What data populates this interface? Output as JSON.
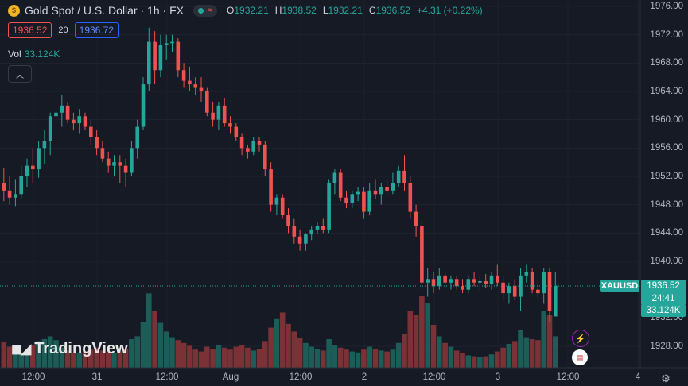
{
  "header": {
    "symbol_icon": "gold-coin-icon",
    "title": "Gold Spot / U.S. Dollar · 1h · FX",
    "status_icon": "market-open-icon",
    "ohlc": {
      "o_label": "O",
      "o": "1932.21",
      "h_label": "H",
      "h": "1938.52",
      "l_label": "L",
      "l": "1932.21",
      "c_label": "C",
      "c": "1936.52",
      "change": "+4.31 (+0.22%)"
    },
    "bid": "1936.52",
    "spread": "20",
    "ask": "1936.72",
    "vol_label": "Vol",
    "vol_value": "33.124K",
    "collapse_icon": "chevron-up-icon"
  },
  "price_axis": {
    "labels": [
      "1976.00",
      "1972.00",
      "1968.00",
      "1964.00",
      "1960.00",
      "1956.00",
      "1952.00",
      "1948.00",
      "1944.00",
      "1940.00",
      "1932.00",
      "1928.00"
    ]
  },
  "time_axis": {
    "labels": [
      "12:00",
      "31",
      "12:00",
      "Aug",
      "12:00",
      "2",
      "12:00",
      "3",
      "12:00",
      "4"
    ]
  },
  "last_price": {
    "symbol": "XAUUSD",
    "price": "1936.52",
    "countdown": "24:41",
    "volume": "33.124K"
  },
  "branding": {
    "logo_icon": "tradingview-logo-icon",
    "text": "TradingView"
  },
  "event_icons": [
    "lightning-icon",
    "us-flag-icon"
  ],
  "settings_icon": "gear-icon",
  "colors": {
    "up": "#26a69a",
    "down": "#ef5350",
    "vol_up": "#1c5d57",
    "vol_down": "#7a3236",
    "background": "#161a25"
  },
  "chart_data": {
    "type": "candlestick",
    "symbol": "XAUUSD",
    "timeframe": "1h",
    "ylim": [
      1926,
      1977
    ],
    "candles": [
      {
        "o": 1951.0,
        "h": 1953.2,
        "l": 1948.5,
        "c": 1950.0,
        "v": 0.27
      },
      {
        "o": 1950.0,
        "h": 1952.0,
        "l": 1948.0,
        "c": 1949.0,
        "v": 0.22
      },
      {
        "o": 1949.0,
        "h": 1951.5,
        "l": 1947.8,
        "c": 1949.5,
        "v": 0.19
      },
      {
        "o": 1949.5,
        "h": 1953.5,
        "l": 1948.8,
        "c": 1952.0,
        "v": 0.16
      },
      {
        "o": 1952.0,
        "h": 1954.5,
        "l": 1950.5,
        "c": 1953.5,
        "v": 0.14
      },
      {
        "o": 1953.5,
        "h": 1956.0,
        "l": 1951.0,
        "c": 1953.0,
        "v": 0.24
      },
      {
        "o": 1953.0,
        "h": 1957.0,
        "l": 1951.8,
        "c": 1956.0,
        "v": 0.28
      },
      {
        "o": 1956.0,
        "h": 1958.5,
        "l": 1953.8,
        "c": 1957.0,
        "v": 0.3
      },
      {
        "o": 1957.0,
        "h": 1961.0,
        "l": 1955.0,
        "c": 1960.5,
        "v": 0.33
      },
      {
        "o": 1960.5,
        "h": 1962.0,
        "l": 1958.5,
        "c": 1961.0,
        "v": 0.29
      },
      {
        "o": 1961.0,
        "h": 1963.5,
        "l": 1959.0,
        "c": 1962.0,
        "v": 0.21
      },
      {
        "o": 1962.0,
        "h": 1962.5,
        "l": 1959.5,
        "c": 1960.0,
        "v": 0.18
      },
      {
        "o": 1960.0,
        "h": 1961.0,
        "l": 1958.5,
        "c": 1959.5,
        "v": 0.16
      },
      {
        "o": 1959.5,
        "h": 1961.5,
        "l": 1958.0,
        "c": 1960.5,
        "v": 0.15
      },
      {
        "o": 1960.5,
        "h": 1961.0,
        "l": 1958.5,
        "c": 1959.0,
        "v": 0.17
      },
      {
        "o": 1959.0,
        "h": 1960.0,
        "l": 1956.5,
        "c": 1957.5,
        "v": 0.19
      },
      {
        "o": 1957.5,
        "h": 1958.5,
        "l": 1955.0,
        "c": 1956.0,
        "v": 0.21
      },
      {
        "o": 1956.0,
        "h": 1957.0,
        "l": 1954.0,
        "c": 1954.5,
        "v": 0.18
      },
      {
        "o": 1954.5,
        "h": 1955.5,
        "l": 1952.5,
        "c": 1953.5,
        "v": 0.16
      },
      {
        "o": 1953.5,
        "h": 1955.0,
        "l": 1952.0,
        "c": 1954.0,
        "v": 0.15
      },
      {
        "o": 1954.0,
        "h": 1955.0,
        "l": 1951.0,
        "c": 1953.5,
        "v": 0.17
      },
      {
        "o": 1953.5,
        "h": 1954.5,
        "l": 1950.5,
        "c": 1952.5,
        "v": 0.2
      },
      {
        "o": 1952.5,
        "h": 1957.0,
        "l": 1952.0,
        "c": 1956.0,
        "v": 0.3
      },
      {
        "o": 1956.0,
        "h": 1960.0,
        "l": 1954.5,
        "c": 1959.0,
        "v": 0.33
      },
      {
        "o": 1959.0,
        "h": 1966.0,
        "l": 1958.5,
        "c": 1965.0,
        "v": 0.48
      },
      {
        "o": 1965.0,
        "h": 1973.0,
        "l": 1964.0,
        "c": 1971.0,
        "v": 0.78
      },
      {
        "o": 1971.0,
        "h": 1972.5,
        "l": 1965.0,
        "c": 1967.0,
        "v": 0.6
      },
      {
        "o": 1967.0,
        "h": 1972.0,
        "l": 1966.0,
        "c": 1970.5,
        "v": 0.47
      },
      {
        "o": 1970.5,
        "h": 1972.0,
        "l": 1968.5,
        "c": 1970.8,
        "v": 0.38
      },
      {
        "o": 1970.8,
        "h": 1972.0,
        "l": 1969.5,
        "c": 1971.0,
        "v": 0.32
      },
      {
        "o": 1971.0,
        "h": 1971.5,
        "l": 1966.0,
        "c": 1967.0,
        "v": 0.29
      },
      {
        "o": 1967.0,
        "h": 1968.0,
        "l": 1964.5,
        "c": 1965.5,
        "v": 0.26
      },
      {
        "o": 1965.5,
        "h": 1967.5,
        "l": 1964.0,
        "c": 1965.0,
        "v": 0.23
      },
      {
        "o": 1965.0,
        "h": 1966.0,
        "l": 1963.5,
        "c": 1964.5,
        "v": 0.19
      },
      {
        "o": 1964.5,
        "h": 1966.0,
        "l": 1962.5,
        "c": 1964.0,
        "v": 0.17
      },
      {
        "o": 1964.0,
        "h": 1964.5,
        "l": 1960.5,
        "c": 1961.0,
        "v": 0.22
      },
      {
        "o": 1961.0,
        "h": 1962.5,
        "l": 1959.0,
        "c": 1960.0,
        "v": 0.2
      },
      {
        "o": 1960.0,
        "h": 1962.5,
        "l": 1958.5,
        "c": 1962.0,
        "v": 0.24
      },
      {
        "o": 1962.0,
        "h": 1963.0,
        "l": 1959.0,
        "c": 1959.5,
        "v": 0.21
      },
      {
        "o": 1959.5,
        "h": 1960.5,
        "l": 1958.0,
        "c": 1959.0,
        "v": 0.19
      },
      {
        "o": 1959.0,
        "h": 1959.5,
        "l": 1957.0,
        "c": 1957.5,
        "v": 0.22
      },
      {
        "o": 1957.5,
        "h": 1958.0,
        "l": 1955.0,
        "c": 1956.0,
        "v": 0.24
      },
      {
        "o": 1956.0,
        "h": 1956.5,
        "l": 1954.5,
        "c": 1955.5,
        "v": 0.21
      },
      {
        "o": 1955.5,
        "h": 1957.5,
        "l": 1955.0,
        "c": 1957.0,
        "v": 0.18
      },
      {
        "o": 1957.0,
        "h": 1957.5,
        "l": 1955.5,
        "c": 1956.5,
        "v": 0.2
      },
      {
        "o": 1956.5,
        "h": 1957.0,
        "l": 1952.0,
        "c": 1953.0,
        "v": 0.28
      },
      {
        "o": 1953.0,
        "h": 1954.0,
        "l": 1947.0,
        "c": 1948.0,
        "v": 0.42
      },
      {
        "o": 1948.0,
        "h": 1949.5,
        "l": 1946.5,
        "c": 1949.0,
        "v": 0.51
      },
      {
        "o": 1949.0,
        "h": 1949.5,
        "l": 1946.0,
        "c": 1946.5,
        "v": 0.58
      },
      {
        "o": 1946.5,
        "h": 1947.5,
        "l": 1944.0,
        "c": 1945.0,
        "v": 0.46
      },
      {
        "o": 1945.0,
        "h": 1946.0,
        "l": 1942.5,
        "c": 1943.5,
        "v": 0.38
      },
      {
        "o": 1943.5,
        "h": 1944.5,
        "l": 1941.5,
        "c": 1942.5,
        "v": 0.31
      },
      {
        "o": 1942.5,
        "h": 1944.0,
        "l": 1941.5,
        "c": 1943.8,
        "v": 0.26
      },
      {
        "o": 1943.8,
        "h": 1945.0,
        "l": 1943.0,
        "c": 1944.5,
        "v": 0.22
      },
      {
        "o": 1944.5,
        "h": 1945.5,
        "l": 1943.8,
        "c": 1945.0,
        "v": 0.2
      },
      {
        "o": 1945.0,
        "h": 1946.0,
        "l": 1944.0,
        "c": 1944.5,
        "v": 0.18
      },
      {
        "o": 1944.5,
        "h": 1951.5,
        "l": 1944.0,
        "c": 1951.0,
        "v": 0.3
      },
      {
        "o": 1951.0,
        "h": 1953.0,
        "l": 1949.5,
        "c": 1952.5,
        "v": 0.24
      },
      {
        "o": 1952.5,
        "h": 1953.0,
        "l": 1948.5,
        "c": 1949.0,
        "v": 0.21
      },
      {
        "o": 1949.0,
        "h": 1950.0,
        "l": 1947.5,
        "c": 1948.2,
        "v": 0.19
      },
      {
        "o": 1948.2,
        "h": 1950.0,
        "l": 1947.5,
        "c": 1949.5,
        "v": 0.17
      },
      {
        "o": 1949.5,
        "h": 1950.5,
        "l": 1948.5,
        "c": 1949.8,
        "v": 0.16
      },
      {
        "o": 1949.8,
        "h": 1950.5,
        "l": 1946.0,
        "c": 1947.0,
        "v": 0.19
      },
      {
        "o": 1947.0,
        "h": 1951.0,
        "l": 1946.5,
        "c": 1950.0,
        "v": 0.22
      },
      {
        "o": 1950.0,
        "h": 1951.5,
        "l": 1948.8,
        "c": 1949.5,
        "v": 0.2
      },
      {
        "o": 1949.5,
        "h": 1951.0,
        "l": 1948.0,
        "c": 1950.5,
        "v": 0.18
      },
      {
        "o": 1950.5,
        "h": 1951.5,
        "l": 1949.5,
        "c": 1950.0,
        "v": 0.17
      },
      {
        "o": 1950.0,
        "h": 1952.5,
        "l": 1949.5,
        "c": 1951.0,
        "v": 0.19
      },
      {
        "o": 1951.0,
        "h": 1953.5,
        "l": 1950.5,
        "c": 1952.8,
        "v": 0.26
      },
      {
        "o": 1952.8,
        "h": 1955.0,
        "l": 1950.0,
        "c": 1951.0,
        "v": 0.35
      },
      {
        "o": 1951.0,
        "h": 1952.0,
        "l": 1946.0,
        "c": 1947.0,
        "v": 0.6
      },
      {
        "o": 1947.0,
        "h": 1948.0,
        "l": 1943.5,
        "c": 1945.0,
        "v": 0.55
      },
      {
        "o": 1945.0,
        "h": 1945.5,
        "l": 1936.0,
        "c": 1937.0,
        "v": 0.75
      },
      {
        "o": 1937.0,
        "h": 1939.0,
        "l": 1935.0,
        "c": 1937.5,
        "v": 0.68
      },
      {
        "o": 1937.5,
        "h": 1938.5,
        "l": 1935.5,
        "c": 1936.5,
        "v": 0.45
      },
      {
        "o": 1936.5,
        "h": 1939.0,
        "l": 1936.0,
        "c": 1938.0,
        "v": 0.33
      },
      {
        "o": 1938.0,
        "h": 1938.5,
        "l": 1936.2,
        "c": 1937.0,
        "v": 0.26
      },
      {
        "o": 1937.0,
        "h": 1938.0,
        "l": 1936.0,
        "c": 1937.5,
        "v": 0.22
      },
      {
        "o": 1937.5,
        "h": 1938.0,
        "l": 1936.0,
        "c": 1936.5,
        "v": 0.18
      },
      {
        "o": 1936.5,
        "h": 1937.5,
        "l": 1935.5,
        "c": 1936.0,
        "v": 0.15
      },
      {
        "o": 1936.0,
        "h": 1938.0,
        "l": 1935.5,
        "c": 1937.5,
        "v": 0.13
      },
      {
        "o": 1937.5,
        "h": 1938.5,
        "l": 1936.5,
        "c": 1937.0,
        "v": 0.12
      },
      {
        "o": 1937.0,
        "h": 1938.0,
        "l": 1936.0,
        "c": 1937.2,
        "v": 0.11
      },
      {
        "o": 1937.2,
        "h": 1938.2,
        "l": 1936.3,
        "c": 1936.8,
        "v": 0.12
      },
      {
        "o": 1936.8,
        "h": 1938.5,
        "l": 1936.0,
        "c": 1938.0,
        "v": 0.14
      },
      {
        "o": 1938.0,
        "h": 1939.5,
        "l": 1936.5,
        "c": 1937.0,
        "v": 0.17
      },
      {
        "o": 1937.0,
        "h": 1938.0,
        "l": 1934.5,
        "c": 1935.5,
        "v": 0.21
      },
      {
        "o": 1935.5,
        "h": 1937.0,
        "l": 1934.0,
        "c": 1936.5,
        "v": 0.25
      },
      {
        "o": 1936.5,
        "h": 1937.5,
        "l": 1934.5,
        "c": 1935.0,
        "v": 0.28
      },
      {
        "o": 1935.0,
        "h": 1939.0,
        "l": 1933.0,
        "c": 1938.0,
        "v": 0.4
      },
      {
        "o": 1938.0,
        "h": 1939.5,
        "l": 1937.0,
        "c": 1938.5,
        "v": 0.32
      },
      {
        "o": 1938.5,
        "h": 1939.0,
        "l": 1935.5,
        "c": 1936.0,
        "v": 0.3
      },
      {
        "o": 1936.0,
        "h": 1937.5,
        "l": 1934.5,
        "c": 1935.5,
        "v": 0.29
      },
      {
        "o": 1935.5,
        "h": 1939.0,
        "l": 1934.0,
        "c": 1938.5,
        "v": 0.6
      },
      {
        "o": 1938.5,
        "h": 1939.0,
        "l": 1931.5,
        "c": 1933.0,
        "v": 0.55
      },
      {
        "o": 1932.21,
        "h": 1938.52,
        "l": 1932.21,
        "c": 1936.52,
        "v": 0.33
      }
    ]
  }
}
